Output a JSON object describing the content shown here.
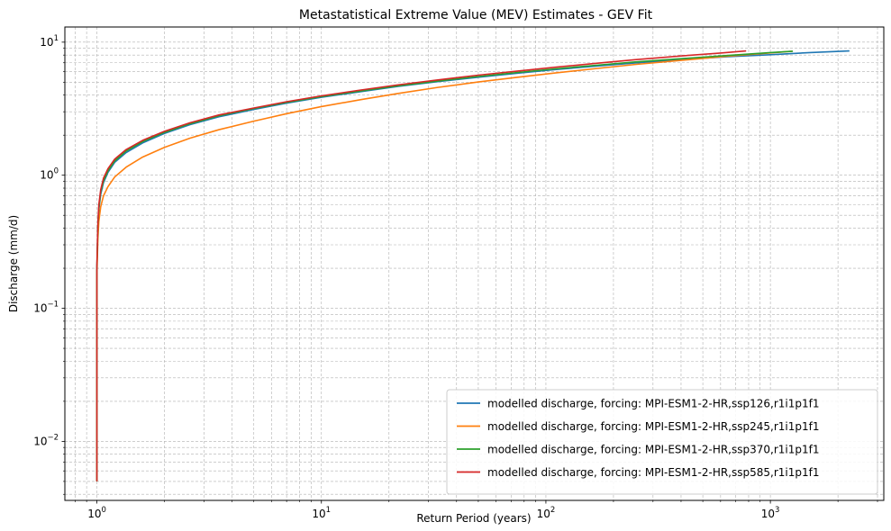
{
  "chart_data": {
    "type": "line",
    "title": "Metastatistical Extreme Value (MEV) Estimates - GEV Fit",
    "xlabel": "Return Period (years)",
    "ylabel": "Discharge (mm/d)",
    "xscale": "log",
    "yscale": "log",
    "xlim": [
      0.72,
      3200
    ],
    "ylim": [
      0.0036,
      13
    ],
    "grid": true,
    "legend_position": "lower-right",
    "x_ticks": [
      {
        "value": 1,
        "base": "10",
        "exp": "0"
      },
      {
        "value": 10,
        "base": "10",
        "exp": "1"
      },
      {
        "value": 100,
        "base": "10",
        "exp": "2"
      },
      {
        "value": 1000,
        "base": "10",
        "exp": "3"
      }
    ],
    "y_ticks": [
      {
        "value": 0.01,
        "base": "10",
        "exp": "−2"
      },
      {
        "value": 0.1,
        "base": "10",
        "exp": "−1"
      },
      {
        "value": 1,
        "base": "10",
        "exp": "0"
      },
      {
        "value": 10,
        "base": "10",
        "exp": "1"
      }
    ],
    "series": [
      {
        "name": "modelled discharge, forcing: MPI-ESM1-2-HR,ssp126,r1i1p1f1",
        "color": "#1f77b4",
        "x": [
          1.0,
          1.0,
          1.0,
          1.01,
          1.02,
          1.04,
          1.07,
          1.12,
          1.2,
          1.35,
          1.6,
          2.0,
          2.6,
          3.5,
          5,
          7,
          10,
          15,
          22,
          33,
          50,
          75,
          110,
          170,
          250,
          400,
          650,
          1000,
          1500,
          2250
        ],
        "y": [
          0.005,
          0.05,
          0.2,
          0.4,
          0.55,
          0.72,
          0.88,
          1.05,
          1.25,
          1.48,
          1.75,
          2.06,
          2.4,
          2.75,
          3.12,
          3.48,
          3.85,
          4.25,
          4.65,
          5.05,
          5.45,
          5.85,
          6.22,
          6.62,
          6.98,
          7.38,
          7.78,
          8.05,
          8.35,
          8.6
        ]
      },
      {
        "name": "modelled discharge, forcing: MPI-ESM1-2-HR,ssp245,r1i1p1f1",
        "color": "#ff7f0e",
        "x": [
          1.0,
          1.0,
          1.0,
          1.01,
          1.02,
          1.04,
          1.07,
          1.12,
          1.2,
          1.35,
          1.6,
          2.0,
          2.6,
          3.5,
          5,
          7,
          10,
          15,
          22,
          33,
          50,
          75,
          110,
          170,
          250,
          400,
          650,
          1000,
          1250
        ],
        "y": [
          0.005,
          0.05,
          0.18,
          0.33,
          0.45,
          0.58,
          0.7,
          0.82,
          0.97,
          1.15,
          1.37,
          1.62,
          1.9,
          2.2,
          2.55,
          2.9,
          3.28,
          3.7,
          4.12,
          4.57,
          5.02,
          5.45,
          5.87,
          6.35,
          6.8,
          7.3,
          7.85,
          8.3,
          8.55
        ]
      },
      {
        "name": "modelled discharge, forcing: MPI-ESM1-2-HR,ssp370,r1i1p1f1",
        "color": "#2ca02c",
        "x": [
          1.0,
          1.0,
          1.0,
          1.01,
          1.02,
          1.04,
          1.07,
          1.12,
          1.2,
          1.35,
          1.6,
          2.0,
          2.6,
          3.5,
          5,
          7,
          10,
          15,
          22,
          33,
          50,
          75,
          110,
          170,
          250,
          400,
          650,
          1000,
          1260
        ],
        "y": [
          0.005,
          0.05,
          0.2,
          0.41,
          0.57,
          0.75,
          0.91,
          1.08,
          1.28,
          1.52,
          1.79,
          2.1,
          2.44,
          2.8,
          3.17,
          3.53,
          3.9,
          4.3,
          4.7,
          5.1,
          5.52,
          5.92,
          6.3,
          6.72,
          7.1,
          7.52,
          7.95,
          8.35,
          8.55
        ]
      },
      {
        "name": "modelled discharge, forcing: MPI-ESM1-2-HR,ssp585,r1i1p1f1",
        "color": "#d62728",
        "x": [
          1.0,
          1.0,
          1.0,
          1.01,
          1.02,
          1.04,
          1.07,
          1.12,
          1.2,
          1.35,
          1.6,
          2.0,
          2.6,
          3.5,
          5,
          7,
          10,
          15,
          22,
          33,
          50,
          75,
          110,
          170,
          250,
          400,
          600,
          780
        ],
        "y": [
          0.005,
          0.05,
          0.21,
          0.43,
          0.6,
          0.78,
          0.95,
          1.12,
          1.32,
          1.56,
          1.83,
          2.14,
          2.48,
          2.84,
          3.2,
          3.57,
          3.95,
          4.37,
          4.78,
          5.2,
          5.65,
          6.07,
          6.48,
          6.95,
          7.38,
          7.88,
          8.28,
          8.6
        ]
      }
    ]
  }
}
